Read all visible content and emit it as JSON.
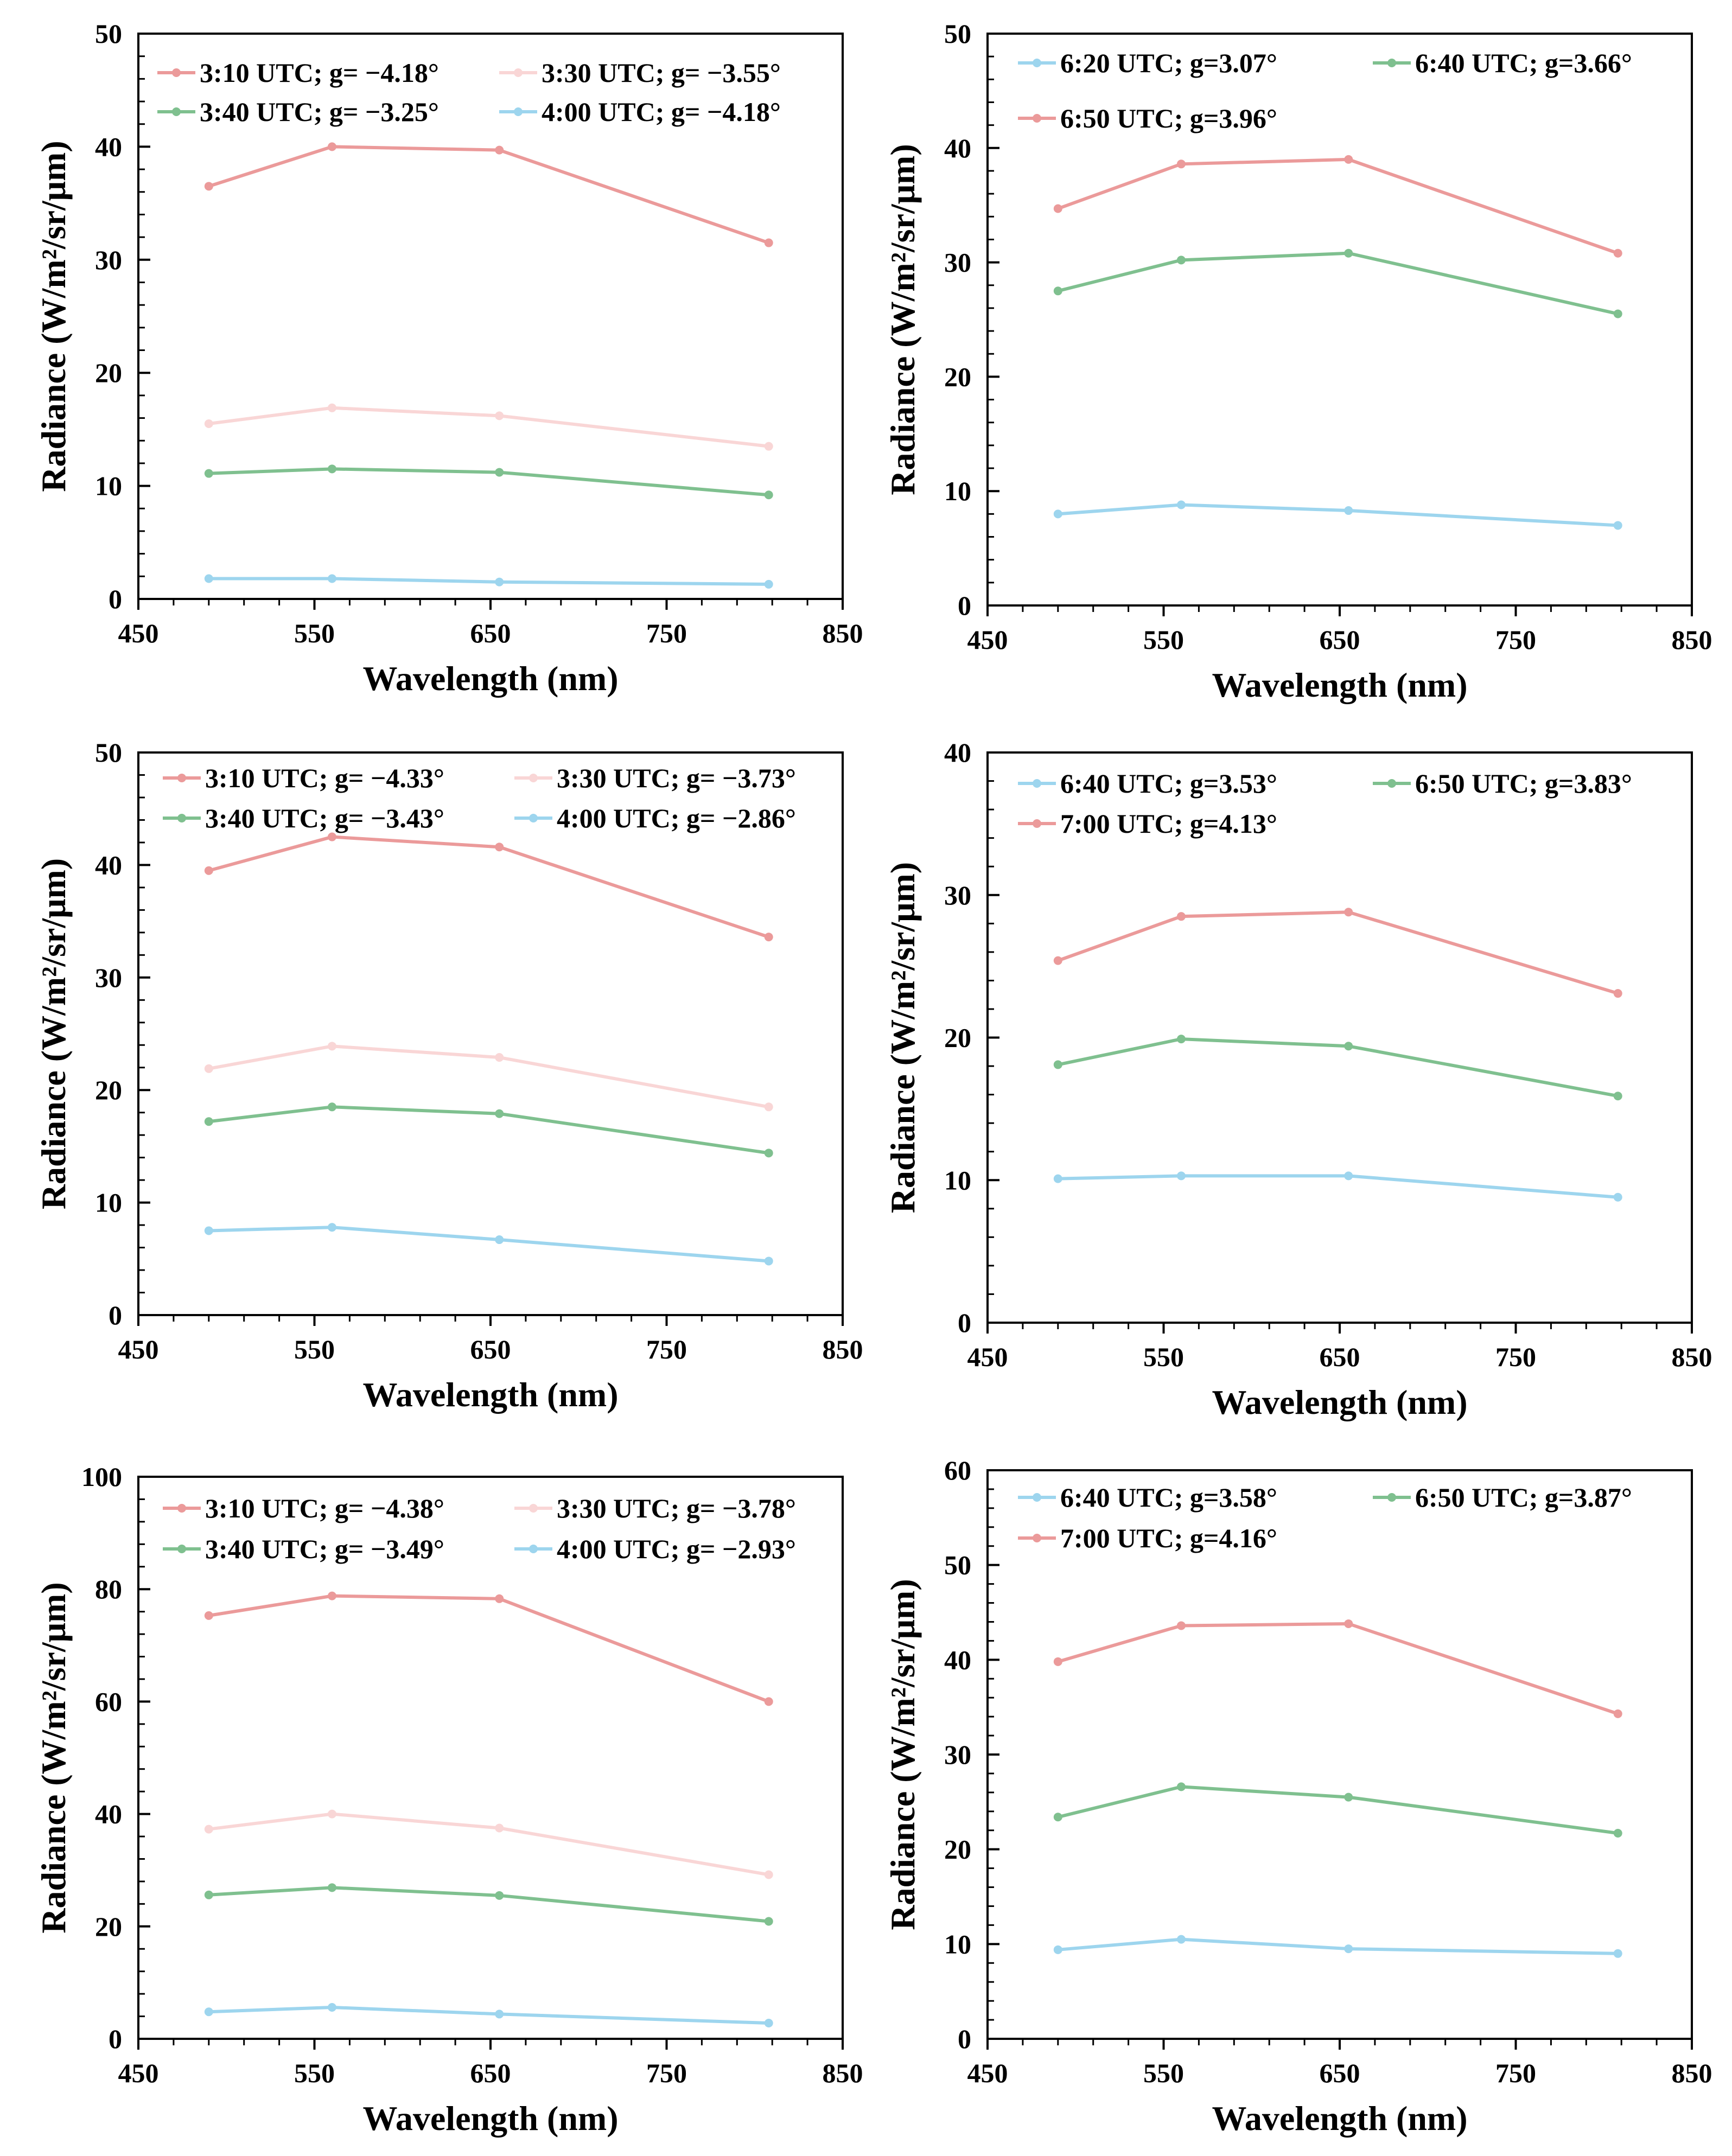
{
  "colors": {
    "red": "#eb9a9a",
    "pink": "#f9d6d6",
    "green": "#7fc08f",
    "blue": "#9dd5ee",
    "axis": "#000000"
  },
  "chart_data": [
    {
      "type": "line",
      "xlabel": "Wavelength (nm)",
      "ylabel": "Radiance (W/m²/sr/μm)",
      "xlim": [
        450,
        850
      ],
      "ylim": [
        0,
        50
      ],
      "xticks": [
        450,
        550,
        650,
        750,
        850
      ],
      "yticks": [
        0,
        10,
        20,
        30,
        40,
        50
      ],
      "x": [
        490,
        560,
        655,
        808
      ],
      "legend_columns": 2,
      "series": [
        {
          "name": "3:10 UTC; g= −4.18°",
          "color": "#eb9a9a",
          "values": [
            36.5,
            40.0,
            39.7,
            31.5
          ]
        },
        {
          "name": "3:30 UTC; g= −3.55°",
          "color": "#f9d6d6",
          "values": [
            15.5,
            16.9,
            16.2,
            13.5
          ]
        },
        {
          "name": "3:40 UTC; g= −3.25°",
          "color": "#7fc08f",
          "values": [
            11.1,
            11.5,
            11.2,
            9.2
          ]
        },
        {
          "name": "4:00 UTC; g= −4.18°",
          "color": "#9dd5ee",
          "values": [
            1.8,
            1.8,
            1.5,
            1.3
          ]
        }
      ]
    },
    {
      "type": "line",
      "xlabel": "Wavelength (nm)",
      "ylabel": "Radiance (W/m²/sr/μm)",
      "xlim": [
        450,
        850
      ],
      "ylim": [
        0,
        50
      ],
      "xticks": [
        450,
        550,
        650,
        750,
        850
      ],
      "yticks": [
        0,
        10,
        20,
        30,
        40,
        50
      ],
      "x": [
        490,
        560,
        655,
        808
      ],
      "legend_columns": 2,
      "series": [
        {
          "name": "6:20 UTC; g=3.07°",
          "color": "#9dd5ee",
          "values": [
            8.0,
            8.8,
            8.3,
            7.0
          ]
        },
        {
          "name": "6:40 UTC; g=3.66°",
          "color": "#7fc08f",
          "values": [
            27.5,
            30.2,
            30.8,
            25.5
          ]
        },
        {
          "name": "6:50 UTC; g=3.96°",
          "color": "#eb9a9a",
          "values": [
            34.7,
            38.6,
            39.0,
            30.8
          ]
        }
      ]
    },
    {
      "type": "line",
      "xlabel": "Wavelength (nm)",
      "ylabel": "Radiance (W/m²/sr/μm)",
      "xlim": [
        450,
        850
      ],
      "ylim": [
        0,
        50
      ],
      "xticks": [
        450,
        550,
        650,
        750,
        850
      ],
      "yticks": [
        0,
        10,
        20,
        30,
        40,
        50
      ],
      "x": [
        490,
        560,
        655,
        808
      ],
      "legend_columns": 2,
      "series": [
        {
          "name": "3:10 UTC; g= −4.33°",
          "color": "#eb9a9a",
          "values": [
            39.5,
            42.5,
            41.6,
            33.6
          ]
        },
        {
          "name": "3:30 UTC; g= −3.73°",
          "color": "#f9d6d6",
          "values": [
            21.9,
            23.9,
            22.9,
            18.5
          ]
        },
        {
          "name": "3:40 UTC; g= −3.43°",
          "color": "#7fc08f",
          "values": [
            17.2,
            18.5,
            17.9,
            14.4
          ]
        },
        {
          "name": "4:00 UTC; g= −2.86°",
          "color": "#9dd5ee",
          "values": [
            7.5,
            7.8,
            6.7,
            4.8
          ]
        }
      ]
    },
    {
      "type": "line",
      "xlabel": "Wavelength (nm)",
      "ylabel": "Radiance (W/m²/sr/μm)",
      "xlim": [
        450,
        850
      ],
      "ylim": [
        0,
        40
      ],
      "xticks": [
        450,
        550,
        650,
        750,
        850
      ],
      "yticks": [
        0,
        10,
        20,
        30,
        40
      ],
      "x": [
        490,
        560,
        655,
        808
      ],
      "legend_columns": 2,
      "series": [
        {
          "name": "6:40 UTC; g=3.53°",
          "color": "#9dd5ee",
          "values": [
            10.1,
            10.3,
            10.3,
            8.8
          ]
        },
        {
          "name": "6:50 UTC; g=3.83°",
          "color": "#7fc08f",
          "values": [
            18.1,
            19.9,
            19.4,
            15.9
          ]
        },
        {
          "name": "7:00 UTC; g=4.13°",
          "color": "#eb9a9a",
          "values": [
            25.4,
            28.5,
            28.8,
            23.1
          ]
        }
      ]
    },
    {
      "type": "line",
      "xlabel": "Wavelength (nm)",
      "ylabel": "Radiance (W/m²/sr/μm)",
      "xlim": [
        450,
        850
      ],
      "ylim": [
        0,
        100
      ],
      "xticks": [
        450,
        550,
        650,
        750,
        850
      ],
      "yticks": [
        0,
        20,
        40,
        60,
        80,
        100
      ],
      "x": [
        490,
        560,
        655,
        808
      ],
      "legend_columns": 2,
      "series": [
        {
          "name": "3:10 UTC; g= −4.38°",
          "color": "#eb9a9a",
          "values": [
            75.3,
            78.8,
            78.3,
            60.0
          ]
        },
        {
          "name": "3:30 UTC; g= −3.78°",
          "color": "#f9d6d6",
          "values": [
            37.3,
            40.0,
            37.5,
            29.2
          ]
        },
        {
          "name": "3:40 UTC; g= −3.49°",
          "color": "#7fc08f",
          "values": [
            25.6,
            26.9,
            25.5,
            20.9
          ]
        },
        {
          "name": "4:00 UTC; g= −2.93°",
          "color": "#9dd5ee",
          "values": [
            4.8,
            5.6,
            4.4,
            2.8
          ]
        }
      ]
    },
    {
      "type": "line",
      "xlabel": "Wavelength (nm)",
      "ylabel": "Radiance (W/m²/sr/μm)",
      "xlim": [
        450,
        850
      ],
      "ylim": [
        0,
        60
      ],
      "xticks": [
        450,
        550,
        650,
        750,
        850
      ],
      "yticks": [
        0,
        10,
        20,
        30,
        40,
        50,
        60
      ],
      "x": [
        490,
        560,
        655,
        808
      ],
      "legend_columns": 2,
      "series": [
        {
          "name": "6:40 UTC; g=3.58°",
          "color": "#9dd5ee",
          "values": [
            9.4,
            10.5,
            9.5,
            9.0
          ]
        },
        {
          "name": "6:50 UTC; g=3.87°",
          "color": "#7fc08f",
          "values": [
            23.4,
            26.6,
            25.5,
            21.7
          ]
        },
        {
          "name": "7:00 UTC; g=4.16°",
          "color": "#eb9a9a",
          "values": [
            39.8,
            43.6,
            43.8,
            34.3
          ]
        }
      ]
    }
  ]
}
